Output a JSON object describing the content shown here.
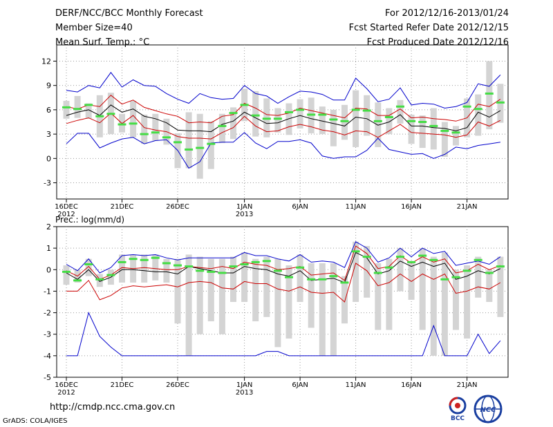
{
  "header": {
    "title": "DERF/NCC/BCC Monthly Forecast",
    "member_size": "Member Size=40",
    "variable": "Mean Surf. Temp.: °C",
    "forecast_period": "For 2012/12/16-2013/01/24",
    "start_date": "Fcst Started Refer Date 2012/12/15",
    "produced_date": "Fcst Produced Date 2012/12/16"
  },
  "footer": {
    "website": "http://cmdp.ncc.cma.gov.cn",
    "credit": "GrADS: COLA/IGES",
    "logo_bcc_text": "BCC",
    "logo_ncc_text": "NCC"
  },
  "colors": {
    "ensemble_max_min": "#0000cc",
    "spread_lines": "#cc0000",
    "ensemble_mean": "#000000",
    "member_bar": "#d4d4d4",
    "center_marker": "#44dd44"
  },
  "chart_data": [
    {
      "type": "line",
      "title": "Mean Surf. Temp.: °C",
      "ylim": [
        -5,
        14
      ],
      "yticks": [
        -3,
        0,
        3,
        6,
        9,
        12
      ],
      "xlim": [
        0,
        39
      ],
      "xticks": [
        {
          "day": 0,
          "label": "16DEC",
          "sub": "2012"
        },
        {
          "day": 5,
          "label": "21DEC",
          "sub": ""
        },
        {
          "day": 10,
          "label": "26DEC",
          "sub": ""
        },
        {
          "day": 16,
          "label": "1JAN",
          "sub": "2013"
        },
        {
          "day": 21,
          "label": "6JAN",
          "sub": ""
        },
        {
          "day": 26,
          "label": "11JAN",
          "sub": ""
        },
        {
          "day": 31,
          "label": "16JAN",
          "sub": ""
        },
        {
          "day": 36,
          "label": "21JAN",
          "sub": ""
        }
      ],
      "x": [
        0,
        1,
        2,
        3,
        4,
        5,
        6,
        7,
        8,
        9,
        10,
        11,
        12,
        13,
        14,
        15,
        16,
        17,
        18,
        19,
        20,
        21,
        22,
        23,
        24,
        25,
        26,
        27,
        28,
        29,
        30,
        31,
        32,
        33,
        34,
        35,
        36,
        37,
        38,
        39
      ],
      "series": [
        {
          "name": "max",
          "values": [
            8.4,
            8.2,
            9.0,
            8.7,
            10.6,
            8.8,
            9.7,
            9.0,
            8.9,
            8.0,
            7.3,
            6.8,
            8.0,
            7.5,
            7.3,
            7.4,
            9.0,
            8.0,
            7.7,
            6.8,
            7.6,
            8.3,
            8.2,
            7.9,
            7.2,
            7.2,
            9.9,
            8.6,
            7.0,
            7.3,
            8.7,
            6.6,
            6.8,
            6.7,
            6.2,
            6.4,
            6.9,
            9.2,
            8.9,
            10.3
          ]
        },
        {
          "name": "upper",
          "values": [
            6.4,
            6.1,
            6.6,
            6.4,
            7.8,
            6.7,
            7.2,
            6.3,
            5.9,
            5.5,
            5.2,
            4.4,
            4.5,
            4.4,
            5.2,
            5.4,
            6.8,
            6.2,
            5.4,
            5.3,
            5.6,
            6.2,
            5.9,
            5.6,
            5.3,
            5.0,
            6.2,
            6.1,
            5.3,
            5.3,
            6.1,
            5.0,
            5.1,
            4.9,
            4.8,
            4.6,
            5.0,
            6.7,
            6.4,
            7.3
          ]
        },
        {
          "name": "mean",
          "values": [
            5.3,
            5.7,
            6.0,
            5.3,
            6.6,
            5.7,
            6.1,
            5.2,
            4.9,
            4.4,
            3.5,
            3.4,
            3.4,
            3.3,
            4.2,
            4.6,
            5.7,
            5.0,
            4.3,
            4.4,
            4.9,
            5.3,
            4.9,
            4.6,
            4.3,
            4.0,
            5.1,
            4.9,
            4.1,
            4.5,
            5.4,
            4.0,
            4.0,
            3.8,
            3.7,
            3.4,
            3.8,
            5.7,
            5.1,
            5.9
          ]
        },
        {
          "name": "lower",
          "values": [
            4.3,
            4.7,
            5.0,
            4.4,
            5.6,
            4.3,
            5.3,
            3.8,
            3.5,
            3.3,
            2.7,
            2.5,
            2.5,
            2.4,
            3.2,
            3.8,
            5.2,
            4.0,
            3.3,
            3.4,
            3.9,
            4.2,
            3.9,
            3.5,
            3.3,
            2.9,
            3.4,
            3.3,
            2.6,
            3.4,
            4.2,
            3.2,
            3.1,
            3.0,
            2.9,
            2.6,
            2.9,
            4.5,
            4.0,
            4.7
          ]
        },
        {
          "name": "min",
          "values": [
            1.8,
            3.1,
            3.1,
            1.3,
            1.9,
            2.4,
            2.6,
            1.8,
            2.2,
            2.3,
            1.0,
            -1.2,
            -0.4,
            1.9,
            2.0,
            2.0,
            3.2,
            1.9,
            1.2,
            2.1,
            2.1,
            2.3,
            1.9,
            0.3,
            0.0,
            0.2,
            0.2,
            1.0,
            2.5,
            1.1,
            0.8,
            0.5,
            0.6,
            0.0,
            0.5,
            1.4,
            1.2,
            1.6,
            1.8,
            2.0
          ]
        }
      ],
      "bars": {
        "low": [
          4.9,
          5.0,
          4.9,
          2.6,
          3.0,
          3.2,
          2.6,
          1.8,
          2.2,
          1.7,
          -1.2,
          -1.2,
          -2.5,
          -1.3,
          1.9,
          2.4,
          4.6,
          2.7,
          2.6,
          3.2,
          2.9,
          3.7,
          3.1,
          3.0,
          1.5,
          2.3,
          1.4,
          2.8,
          1.4,
          3.0,
          4.3,
          1.8,
          1.3,
          1.1,
          0.2,
          1.6,
          2.6,
          2.8,
          3.6,
          4.4
        ],
        "high": [
          7.1,
          7.7,
          6.8,
          7.8,
          8.1,
          5.5,
          7.1,
          5.4,
          5.5,
          4.9,
          3.1,
          5.7,
          5.5,
          4.6,
          5.5,
          6.3,
          8.6,
          8.3,
          7.4,
          6.2,
          6.8,
          7.3,
          7.5,
          6.4,
          6.0,
          6.6,
          8.4,
          7.8,
          6.9,
          6.2,
          7.2,
          5.4,
          5.3,
          6.2,
          4.5,
          4.0,
          7.4,
          7.9,
          12.0,
          9.2
        ],
        "center": [
          6.3,
          6.1,
          6.6,
          5.2,
          5.5,
          4.2,
          4.3,
          3.0,
          3.2,
          2.6,
          2.0,
          1.1,
          1.3,
          1.8,
          4.0,
          5.6,
          6.6,
          5.3,
          4.9,
          4.9,
          5.7,
          6.0,
          5.4,
          5.4,
          4.8,
          4.6,
          6.0,
          5.9,
          4.6,
          5.1,
          6.4,
          4.6,
          4.5,
          4.0,
          3.4,
          3.2,
          6.4,
          6.1,
          8.0,
          6.9
        ]
      }
    },
    {
      "type": "line",
      "title": "Prec.: log(mm/d)",
      "ylim": [
        -5,
        2
      ],
      "yticks": [
        -5,
        -4,
        -3,
        -2,
        -1,
        0,
        1,
        2
      ],
      "xlim": [
        0,
        39
      ],
      "xticks": [
        {
          "day": 0,
          "label": "16DEC",
          "sub": "2012"
        },
        {
          "day": 5,
          "label": "21DEC",
          "sub": ""
        },
        {
          "day": 10,
          "label": "26DEC",
          "sub": ""
        },
        {
          "day": 16,
          "label": "1JAN",
          "sub": "2013"
        },
        {
          "day": 21,
          "label": "6JAN",
          "sub": ""
        },
        {
          "day": 26,
          "label": "11JAN",
          "sub": ""
        },
        {
          "day": 31,
          "label": "16JAN",
          "sub": ""
        },
        {
          "day": 36,
          "label": "21JAN",
          "sub": ""
        }
      ],
      "x": [
        0,
        1,
        2,
        3,
        4,
        5,
        6,
        7,
        8,
        9,
        10,
        11,
        12,
        13,
        14,
        15,
        16,
        17,
        18,
        19,
        20,
        21,
        22,
        23,
        24,
        25,
        26,
        27,
        28,
        29,
        30,
        31,
        32,
        33,
        34,
        35,
        36,
        37,
        38,
        39
      ],
      "series": [
        {
          "name": "max",
          "values": [
            0.25,
            -0.05,
            0.5,
            -0.15,
            0.1,
            0.65,
            0.7,
            0.65,
            0.7,
            0.55,
            0.45,
            0.55,
            0.55,
            0.55,
            0.55,
            0.55,
            0.8,
            0.65,
            0.65,
            0.5,
            0.4,
            0.7,
            0.35,
            0.4,
            0.35,
            0.1,
            1.3,
            1.0,
            0.35,
            0.55,
            1.0,
            0.6,
            1.0,
            0.75,
            0.85,
            0.2,
            0.3,
            0.4,
            0.25,
            0.6
          ]
        },
        {
          "name": "upper",
          "values": [
            -0.05,
            -0.3,
            0.15,
            -0.45,
            -0.25,
            0.1,
            0.05,
            0.1,
            0.05,
            0.0,
            0.0,
            0.15,
            0.1,
            0.05,
            0.15,
            0.05,
            0.35,
            0.25,
            0.2,
            0.0,
            0.05,
            0.15,
            -0.25,
            -0.2,
            -0.15,
            -0.5,
            1.1,
            0.75,
            0.05,
            0.15,
            0.65,
            0.3,
            0.6,
            0.35,
            0.5,
            -0.15,
            -0.05,
            0.25,
            0.0,
            0.2
          ]
        },
        {
          "name": "mean",
          "values": [
            -0.15,
            -0.45,
            0.0,
            -0.55,
            -0.35,
            0.0,
            0.0,
            -0.05,
            -0.1,
            -0.1,
            -0.2,
            0.15,
            0.05,
            -0.05,
            -0.15,
            -0.15,
            0.15,
            0.05,
            0.0,
            -0.2,
            -0.3,
            -0.05,
            -0.5,
            -0.45,
            -0.4,
            -0.6,
            0.8,
            0.55,
            -0.2,
            -0.05,
            0.4,
            0.15,
            0.35,
            0.15,
            0.3,
            -0.45,
            -0.3,
            -0.05,
            -0.2,
            0.05
          ]
        },
        {
          "name": "lower",
          "values": [
            -1.0,
            -1.0,
            -0.5,
            -1.4,
            -1.2,
            -0.85,
            -0.75,
            -0.8,
            -0.75,
            -0.7,
            -0.8,
            -0.6,
            -0.55,
            -0.6,
            -0.85,
            -0.9,
            -0.55,
            -0.65,
            -0.65,
            -0.9,
            -1.0,
            -0.8,
            -1.05,
            -1.1,
            -1.05,
            -1.5,
            0.3,
            -0.05,
            -0.75,
            -0.6,
            -0.2,
            -0.55,
            -0.2,
            -0.45,
            -0.2,
            -1.1,
            -1.0,
            -0.8,
            -0.9,
            -0.6
          ]
        },
        {
          "name": "min",
          "values": [
            -4.0,
            -4.0,
            -2.0,
            -3.1,
            -3.6,
            -4.0,
            -4.0,
            -4.0,
            -4.0,
            -4.0,
            -4.0,
            -4.0,
            -4.0,
            -4.0,
            -4.0,
            -4.0,
            -4.0,
            -4.0,
            -3.8,
            -3.8,
            -4.0,
            -4.0,
            -4.0,
            -4.0,
            -4.0,
            -4.0,
            -4.0,
            -4.0,
            -4.0,
            -4.0,
            -4.0,
            -4.0,
            -4.0,
            -2.6,
            -4.0,
            -4.0,
            -4.0,
            -3.0,
            -3.9,
            -3.3
          ]
        }
      ],
      "bars": {
        "low": [
          -0.7,
          -0.6,
          -0.3,
          -0.8,
          -0.7,
          -0.6,
          -0.6,
          -0.6,
          -0.5,
          -0.6,
          -2.5,
          -4.0,
          -3.0,
          -2.4,
          -3.0,
          -1.5,
          -1.5,
          -2.4,
          -2.2,
          -3.6,
          -3.2,
          -1.5,
          -2.7,
          -4.0,
          -4.0,
          -2.5,
          -1.5,
          -1.3,
          -2.8,
          -2.8,
          -1.0,
          -1.4,
          -2.8,
          -4.0,
          -4.0,
          -2.8,
          -3.2,
          -1.3,
          -1.5,
          -2.2
        ],
        "high": [
          0.2,
          0.0,
          0.5,
          -0.2,
          0.0,
          0.7,
          0.7,
          0.7,
          0.7,
          0.5,
          0.5,
          0.7,
          0.6,
          0.5,
          0.5,
          0.6,
          0.8,
          0.5,
          0.6,
          0.5,
          0.2,
          0.7,
          0.3,
          0.3,
          0.3,
          -0.3,
          1.3,
          1.1,
          0.3,
          0.5,
          1.0,
          0.4,
          1.0,
          0.6,
          0.8,
          0.0,
          0.2,
          0.6,
          0.0,
          0.6
        ],
        "center": [
          -0.1,
          -0.5,
          0.25,
          -0.45,
          -0.25,
          0.35,
          0.5,
          0.45,
          0.55,
          0.3,
          0.2,
          0.15,
          -0.05,
          -0.1,
          -0.15,
          0.15,
          0.25,
          0.35,
          0.4,
          -0.05,
          -0.35,
          0.1,
          -0.45,
          -0.45,
          -0.3,
          -0.6,
          0.85,
          0.6,
          -0.15,
          0.1,
          0.6,
          0.35,
          0.65,
          0.45,
          -0.45,
          -0.35,
          -0.05,
          0.45,
          -0.15,
          0.15
        ]
      }
    }
  ]
}
